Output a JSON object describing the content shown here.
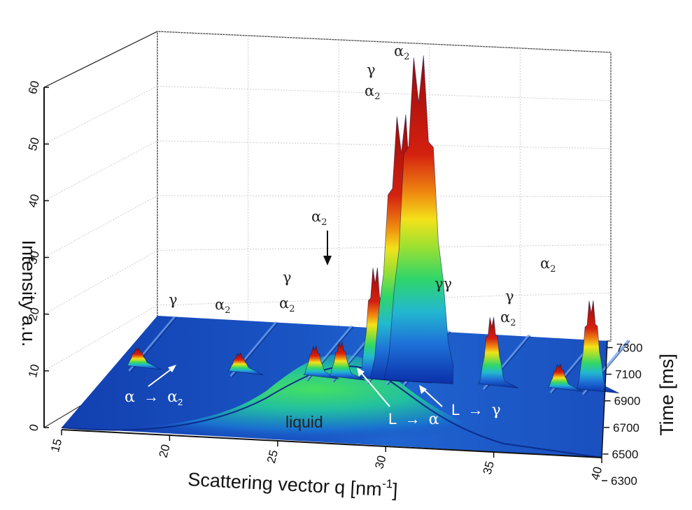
{
  "chart_data": {
    "type": "surface",
    "xlabel": "Scattering vector q [nm",
    "xlabel_sup": "-1",
    "xlabel_end": "]",
    "ylabel": "Intensity a.u.",
    "zlabel": "Time [ms]",
    "x_ticks": [
      "15",
      "20",
      "25",
      "30",
      "35",
      "40"
    ],
    "xlim": [
      15,
      40
    ],
    "y_ticks": [
      "0",
      "10",
      "20",
      "30",
      "40",
      "50",
      "60"
    ],
    "ylim": [
      0,
      60
    ],
    "z_ticks": [
      "6300",
      "6500",
      "6700",
      "6900",
      "7100",
      "7300"
    ],
    "zlim": [
      6300,
      7350
    ],
    "grid": true,
    "colormap": [
      "#0a2fa8",
      "#1e6fd8",
      "#23b8d0",
      "#2fd66a",
      "#9fe030",
      "#f2e21a",
      "#f08a10",
      "#d42010",
      "#9a0a08"
    ],
    "peak_labels": [
      {
        "symbol": "γ",
        "sub": ""
      },
      {
        "symbol": "α",
        "sub": "2"
      },
      {
        "symbol": "γ",
        "sub": ""
      },
      {
        "symbol": "α",
        "sub": "2"
      },
      {
        "symbol": "α",
        "sub": "2"
      },
      {
        "symbol": "γ",
        "sub": ""
      },
      {
        "symbol": "α",
        "sub": "2"
      },
      {
        "symbol": "α",
        "sub": "2"
      },
      {
        "symbol": "γγ",
        "sub": ""
      },
      {
        "symbol": "γ",
        "sub": ""
      },
      {
        "symbol": "α",
        "sub": "2"
      },
      {
        "symbol": "α",
        "sub": "2"
      }
    ],
    "annotations": {
      "alpha_to_alpha2": {
        "from": "α",
        "arrow": "→",
        "to": "α",
        "to_sub": "2"
      },
      "liquid": "liquid",
      "L_to_alpha": {
        "from": "L",
        "arrow": "→",
        "to": "α"
      },
      "L_to_gamma": {
        "from": "L",
        "arrow": "→",
        "to": "γ"
      }
    },
    "peaks": [
      {
        "q": 15.8,
        "max_intensity": 3
      },
      {
        "q": 20.5,
        "max_intensity": 3
      },
      {
        "q": 24.0,
        "max_intensity": 5
      },
      {
        "q": 25.2,
        "max_intensity": 6
      },
      {
        "q": 26.8,
        "max_intensity": 20
      },
      {
        "q": 27.7,
        "max_intensity": 47
      },
      {
        "q": 28.5,
        "max_intensity": 58
      },
      {
        "q": 32.2,
        "max_intensity": 12
      },
      {
        "q": 35.3,
        "max_intensity": 4
      },
      {
        "q": 36.8,
        "max_intensity": 16
      }
    ]
  }
}
